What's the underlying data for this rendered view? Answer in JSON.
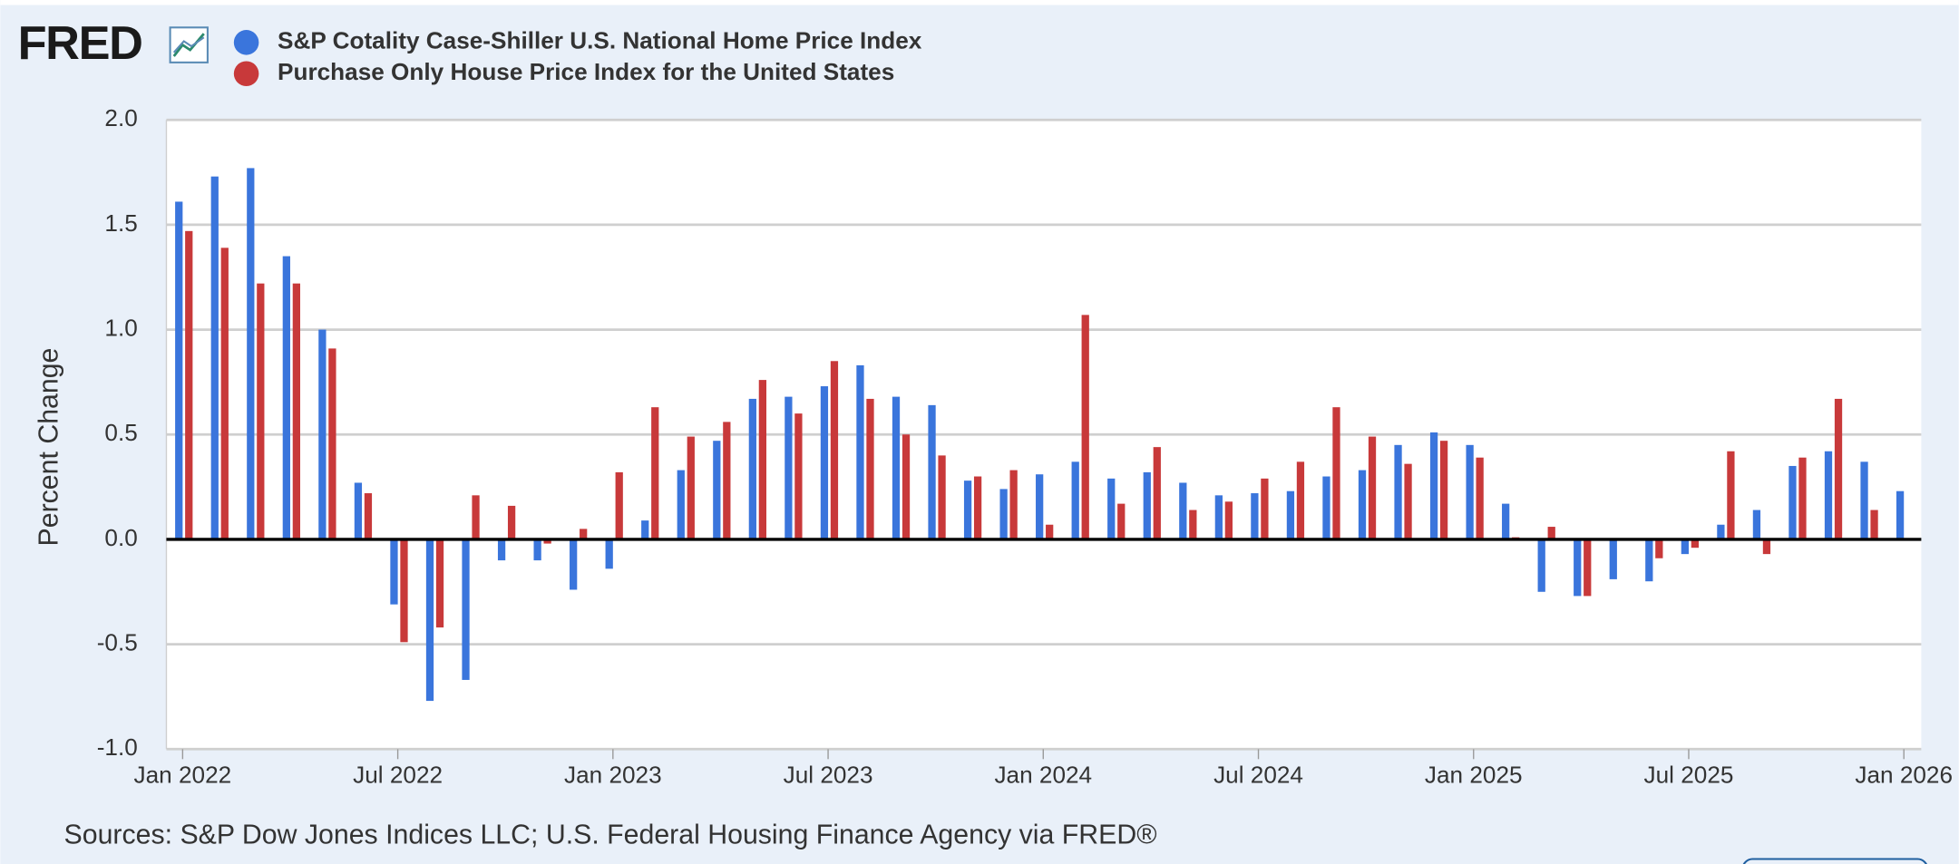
{
  "logo": "FRED",
  "chart_data": {
    "type": "bar",
    "y_label": "Percent Change",
    "source": "Sources: S&P Dow Jones Indices LLC; U.S. Federal Housing Finance Agency via FRED®",
    "x": [
      "2022-01",
      "2022-02",
      "2022-03",
      "2022-04",
      "2022-05",
      "2022-06",
      "2022-07",
      "2022-08",
      "2022-09",
      "2022-10",
      "2022-11",
      "2022-12",
      "2023-01",
      "2023-02",
      "2023-03",
      "2023-04",
      "2023-05",
      "2023-06",
      "2023-07",
      "2023-08",
      "2023-09",
      "2023-10",
      "2023-11",
      "2023-12",
      "2024-01",
      "2024-02",
      "2024-03",
      "2024-04",
      "2024-05",
      "2024-06",
      "2024-07",
      "2024-08",
      "2024-09",
      "2024-10",
      "2024-11",
      "2024-12",
      "2025-01",
      "2025-02",
      "2025-03",
      "2025-04",
      "2025-05",
      "2025-06",
      "2025-07",
      "2025-08",
      "2025-09",
      "2025-10",
      "2025-11",
      "2025-12",
      "2026-01"
    ],
    "series": [
      {
        "name": "S&P Cotality Case-Shiller U.S. National Home Price Index",
        "color": "#3a75dc",
        "values": [
          1.61,
          1.73,
          1.77,
          1.35,
          1.0,
          0.27,
          -0.31,
          -0.77,
          -0.67,
          -0.1,
          -0.1,
          -0.24,
          -0.14,
          0.09,
          0.33,
          0.47,
          0.67,
          0.68,
          0.73,
          0.83,
          0.68,
          0.64,
          0.28,
          0.24,
          0.31,
          0.37,
          0.29,
          0.32,
          0.27,
          0.21,
          0.22,
          0.23,
          0.3,
          0.33,
          0.45,
          0.51,
          0.45,
          0.17,
          -0.25,
          -0.27,
          -0.19,
          -0.2,
          -0.07,
          0.07,
          0.14,
          0.35,
          0.42,
          0.37,
          0.23
        ]
      },
      {
        "name": "Purchase Only House Price Index for the United States",
        "color": "#c8393a",
        "values": [
          1.47,
          1.39,
          1.22,
          1.22,
          0.91,
          0.22,
          -0.49,
          -0.42,
          0.21,
          0.16,
          -0.02,
          0.05,
          0.32,
          0.63,
          0.49,
          0.56,
          0.76,
          0.6,
          0.85,
          0.67,
          0.5,
          0.4,
          0.3,
          0.33,
          0.07,
          1.07,
          0.17,
          0.44,
          0.14,
          0.18,
          0.29,
          0.37,
          0.63,
          0.49,
          0.36,
          0.47,
          0.39,
          0.01,
          0.06,
          -0.27,
          0.0,
          -0.09,
          -0.04,
          0.42,
          -0.07,
          0.39,
          0.67,
          0.14,
          null
        ]
      }
    ],
    "ylim": [
      -1,
      2
    ],
    "yticks": [
      {
        "value": -1,
        "label": "-1.0"
      },
      {
        "value": -0.5,
        "label": "-0.5"
      },
      {
        "value": 0,
        "label": "0.0"
      },
      {
        "value": 0.5,
        "label": "0.5"
      },
      {
        "value": 1,
        "label": "1.0"
      },
      {
        "value": 1.5,
        "label": "1.5"
      },
      {
        "value": 2,
        "label": "2.0"
      }
    ],
    "xticks": [
      {
        "value": "2022-01",
        "label": "Jan 2022"
      },
      {
        "value": "2022-07",
        "label": "Jul 2022"
      },
      {
        "value": "2023-01",
        "label": "Jan 2023"
      },
      {
        "value": "2023-07",
        "label": "Jul 2023"
      },
      {
        "value": "2024-01",
        "label": "Jan 2024"
      },
      {
        "value": "2024-07",
        "label": "Jul 2024"
      },
      {
        "value": "2025-01",
        "label": "Jan 2025"
      },
      {
        "value": "2025-07",
        "label": "Jul 2025"
      },
      {
        "value": "2026-01",
        "label": "Jan 2026"
      }
    ],
    "grid": true
  }
}
